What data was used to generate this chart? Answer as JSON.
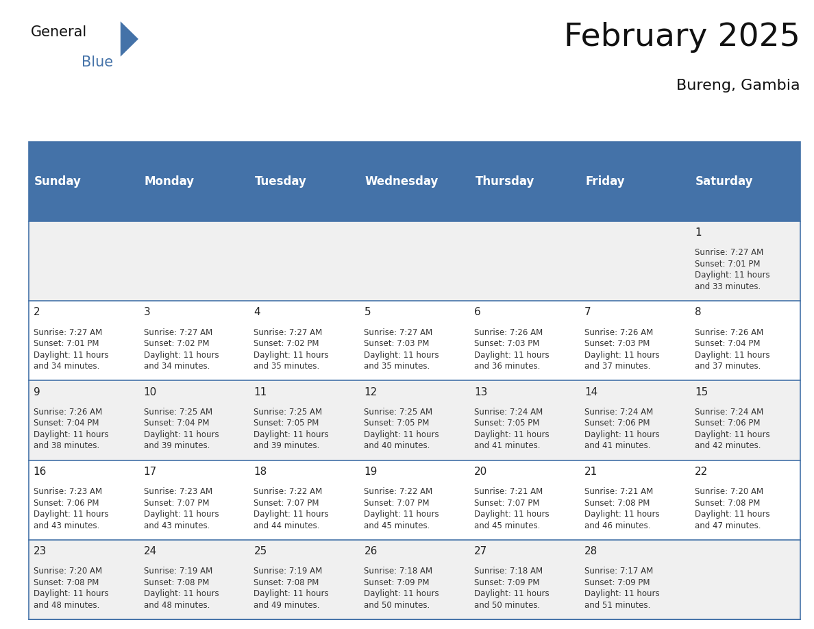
{
  "title": "February 2025",
  "subtitle": "Bureng, Gambia",
  "header_bg_color": "#4472a8",
  "header_text_color": "#ffffff",
  "cell_bg_color_odd": "#f0f0f0",
  "cell_bg_color_even": "#ffffff",
  "day_names": [
    "Sunday",
    "Monday",
    "Tuesday",
    "Wednesday",
    "Thursday",
    "Friday",
    "Saturday"
  ],
  "days": [
    {
      "day": 1,
      "col": 6,
      "row": 0,
      "sunrise": "7:27 AM",
      "sunset": "7:01 PM",
      "daylight": "11 hours\nand 33 minutes."
    },
    {
      "day": 2,
      "col": 0,
      "row": 1,
      "sunrise": "7:27 AM",
      "sunset": "7:01 PM",
      "daylight": "11 hours\nand 34 minutes."
    },
    {
      "day": 3,
      "col": 1,
      "row": 1,
      "sunrise": "7:27 AM",
      "sunset": "7:02 PM",
      "daylight": "11 hours\nand 34 minutes."
    },
    {
      "day": 4,
      "col": 2,
      "row": 1,
      "sunrise": "7:27 AM",
      "sunset": "7:02 PM",
      "daylight": "11 hours\nand 35 minutes."
    },
    {
      "day": 5,
      "col": 3,
      "row": 1,
      "sunrise": "7:27 AM",
      "sunset": "7:03 PM",
      "daylight": "11 hours\nand 35 minutes."
    },
    {
      "day": 6,
      "col": 4,
      "row": 1,
      "sunrise": "7:26 AM",
      "sunset": "7:03 PM",
      "daylight": "11 hours\nand 36 minutes."
    },
    {
      "day": 7,
      "col": 5,
      "row": 1,
      "sunrise": "7:26 AM",
      "sunset": "7:03 PM",
      "daylight": "11 hours\nand 37 minutes."
    },
    {
      "day": 8,
      "col": 6,
      "row": 1,
      "sunrise": "7:26 AM",
      "sunset": "7:04 PM",
      "daylight": "11 hours\nand 37 minutes."
    },
    {
      "day": 9,
      "col": 0,
      "row": 2,
      "sunrise": "7:26 AM",
      "sunset": "7:04 PM",
      "daylight": "11 hours\nand 38 minutes."
    },
    {
      "day": 10,
      "col": 1,
      "row": 2,
      "sunrise": "7:25 AM",
      "sunset": "7:04 PM",
      "daylight": "11 hours\nand 39 minutes."
    },
    {
      "day": 11,
      "col": 2,
      "row": 2,
      "sunrise": "7:25 AM",
      "sunset": "7:05 PM",
      "daylight": "11 hours\nand 39 minutes."
    },
    {
      "day": 12,
      "col": 3,
      "row": 2,
      "sunrise": "7:25 AM",
      "sunset": "7:05 PM",
      "daylight": "11 hours\nand 40 minutes."
    },
    {
      "day": 13,
      "col": 4,
      "row": 2,
      "sunrise": "7:24 AM",
      "sunset": "7:05 PM",
      "daylight": "11 hours\nand 41 minutes."
    },
    {
      "day": 14,
      "col": 5,
      "row": 2,
      "sunrise": "7:24 AM",
      "sunset": "7:06 PM",
      "daylight": "11 hours\nand 41 minutes."
    },
    {
      "day": 15,
      "col": 6,
      "row": 2,
      "sunrise": "7:24 AM",
      "sunset": "7:06 PM",
      "daylight": "11 hours\nand 42 minutes."
    },
    {
      "day": 16,
      "col": 0,
      "row": 3,
      "sunrise": "7:23 AM",
      "sunset": "7:06 PM",
      "daylight": "11 hours\nand 43 minutes."
    },
    {
      "day": 17,
      "col": 1,
      "row": 3,
      "sunrise": "7:23 AM",
      "sunset": "7:07 PM",
      "daylight": "11 hours\nand 43 minutes."
    },
    {
      "day": 18,
      "col": 2,
      "row": 3,
      "sunrise": "7:22 AM",
      "sunset": "7:07 PM",
      "daylight": "11 hours\nand 44 minutes."
    },
    {
      "day": 19,
      "col": 3,
      "row": 3,
      "sunrise": "7:22 AM",
      "sunset": "7:07 PM",
      "daylight": "11 hours\nand 45 minutes."
    },
    {
      "day": 20,
      "col": 4,
      "row": 3,
      "sunrise": "7:21 AM",
      "sunset": "7:07 PM",
      "daylight": "11 hours\nand 45 minutes."
    },
    {
      "day": 21,
      "col": 5,
      "row": 3,
      "sunrise": "7:21 AM",
      "sunset": "7:08 PM",
      "daylight": "11 hours\nand 46 minutes."
    },
    {
      "day": 22,
      "col": 6,
      "row": 3,
      "sunrise": "7:20 AM",
      "sunset": "7:08 PM",
      "daylight": "11 hours\nand 47 minutes."
    },
    {
      "day": 23,
      "col": 0,
      "row": 4,
      "sunrise": "7:20 AM",
      "sunset": "7:08 PM",
      "daylight": "11 hours\nand 48 minutes."
    },
    {
      "day": 24,
      "col": 1,
      "row": 4,
      "sunrise": "7:19 AM",
      "sunset": "7:08 PM",
      "daylight": "11 hours\nand 48 minutes."
    },
    {
      "day": 25,
      "col": 2,
      "row": 4,
      "sunrise": "7:19 AM",
      "sunset": "7:08 PM",
      "daylight": "11 hours\nand 49 minutes."
    },
    {
      "day": 26,
      "col": 3,
      "row": 4,
      "sunrise": "7:18 AM",
      "sunset": "7:09 PM",
      "daylight": "11 hours\nand 50 minutes."
    },
    {
      "day": 27,
      "col": 4,
      "row": 4,
      "sunrise": "7:18 AM",
      "sunset": "7:09 PM",
      "daylight": "11 hours\nand 50 minutes."
    },
    {
      "day": 28,
      "col": 5,
      "row": 4,
      "sunrise": "7:17 AM",
      "sunset": "7:09 PM",
      "daylight": "11 hours\nand 51 minutes."
    }
  ],
  "num_rows": 5,
  "num_cols": 7,
  "title_fontsize": 34,
  "subtitle_fontsize": 16,
  "header_fontsize": 12,
  "day_number_fontsize": 11,
  "cell_text_fontsize": 8.5,
  "divider_color": "#4472a8",
  "logo_triangle_color": "#4472a8"
}
